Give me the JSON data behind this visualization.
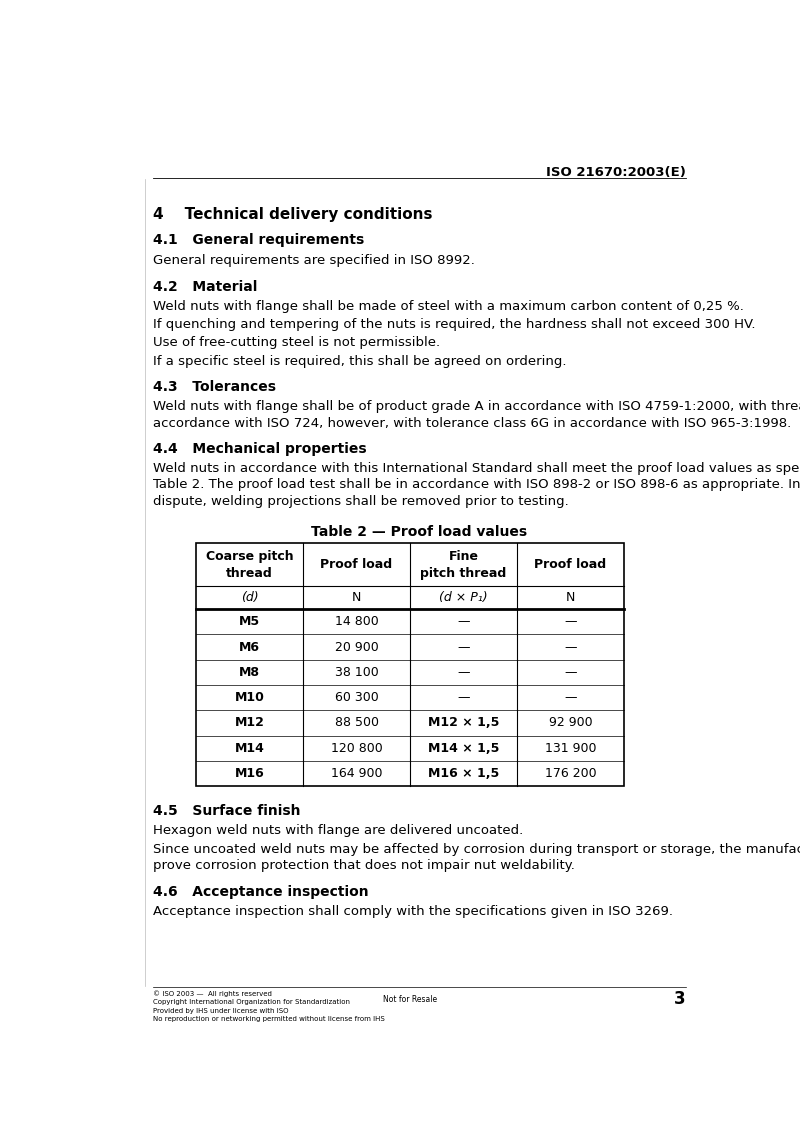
{
  "header": "ISO 21670:2003(E)",
  "page_number": "3",
  "section4_title": "4    Technical delivery conditions",
  "sec41_title": "4.1   General requirements",
  "sec41_text": "General requirements are specified in ISO 8992.",
  "sec42_title": "4.2   Material",
  "sec42_texts": [
    "Weld nuts with flange shall be made of steel with a maximum carbon content of 0,25 %.",
    "If quenching and tempering of the nuts is required, the hardness shall not exceed 300 HV.",
    "Use of free-cutting steel is not permissible.",
    "If a specific steel is required, this shall be agreed on ordering."
  ],
  "sec43_title": "4.3   Tolerances",
  "sec43_lines": [
    "Weld nuts with flange shall be of product grade A in accordance with ISO 4759-1:2000, with threads in",
    "accordance with ISO 724, however, with tolerance class 6G in accordance with ISO 965-3:1998."
  ],
  "sec44_title": "4.4   Mechanical properties",
  "sec44_lines": [
    "Weld nuts in accordance with this International Standard shall meet the proof load values as specified in",
    "Table 2. The proof load test shall be in accordance with ISO 898-2 or ISO 898-6 as appropriate. In case of",
    "dispute, welding projections shall be removed prior to testing."
  ],
  "table_title": "Table 2 — Proof load values",
  "table_header1": [
    "Coarse pitch\nthread",
    "Proof load",
    "Fine\npitch thread",
    "Proof load"
  ],
  "table_header2": [
    "(d)",
    "N",
    "(d × P₁)",
    "N"
  ],
  "table_data": [
    [
      "M5",
      "14 800",
      "—",
      "—"
    ],
    [
      "M6",
      "20 900",
      "—",
      "—"
    ],
    [
      "M8",
      "38 100",
      "—",
      "—"
    ],
    [
      "M10",
      "60 300",
      "—",
      "—"
    ],
    [
      "M12",
      "88 500",
      "M12 × 1,5",
      "92 900"
    ],
    [
      "M14",
      "120 800",
      "M14 × 1,5",
      "131 900"
    ],
    [
      "M16",
      "164 900",
      "M16 × 1,5",
      "176 200"
    ]
  ],
  "sec45_title": "4.5   Surface finish",
  "sec45_text1": "Hexagon weld nuts with flange are delivered uncoated.",
  "sec45_lines2": [
    "Since uncoated weld nuts may be affected by corrosion during transport or storage, the manufacturer shall",
    "prove corrosion protection that does not impair nut weldability."
  ],
  "sec46_title": "4.6   Acceptance inspection",
  "sec46_text": "Acceptance inspection shall comply with the specifications given in ISO 3269.",
  "footer_line1": "© ISO 2003 —  All rights reserved",
  "footer_line2": "Copyright International Organization for Standardization",
  "footer_line3": "Provided by IHS under license with ISO",
  "footer_line4": "No reproduction or networking permitted without license from IHS",
  "footer_center": "Not for Resale",
  "bg_color": "#ffffff",
  "text_color": "#000000",
  "ml": 0.085,
  "mr": 0.945
}
